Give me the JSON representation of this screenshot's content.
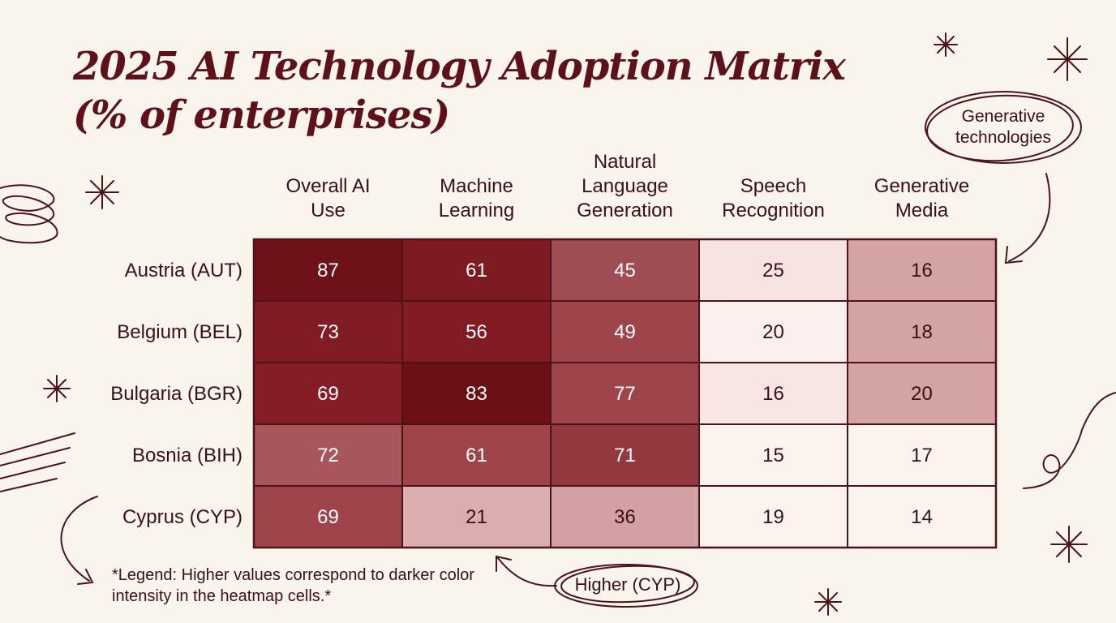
{
  "chart_data": {
    "type": "heatmap",
    "title_lines": [
      "2025 AI Technology Adoption Matrix",
      "(% of enterprises)"
    ],
    "columns": [
      [
        "Overall AI",
        "Use"
      ],
      [
        "Machine",
        "Learning"
      ],
      [
        "Natural",
        "Language",
        "Generation"
      ],
      [
        "Speech",
        "Recognition"
      ],
      [
        "Generative",
        "Media"
      ]
    ],
    "rows": [
      "Austria (AUT)",
      "Belgium (BEL)",
      "Bulgaria (BGR)",
      "Bosnia (BIH)",
      "Cyprus (CYP)"
    ],
    "values": [
      [
        87,
        61,
        45,
        25,
        16
      ],
      [
        73,
        56,
        49,
        20,
        18
      ],
      [
        69,
        83,
        77,
        16,
        20
      ],
      [
        72,
        61,
        71,
        15,
        17
      ],
      [
        69,
        21,
        36,
        19,
        14
      ]
    ],
    "cell_colors": [
      [
        "#6e1219",
        "#7e1a22",
        "#a04c53",
        "#f7e3e0",
        "#d4a3a4"
      ],
      [
        "#811c24",
        "#821b24",
        "#9e454c",
        "#fbf0ed",
        "#d4a3a4"
      ],
      [
        "#841d26",
        "#6b1116",
        "#9e454c",
        "#f8e6e2",
        "#d4a3a4"
      ],
      [
        "#a8565c",
        "#9e454c",
        "#943840",
        "#fcf2ee",
        "#fcf2ee"
      ],
      [
        "#9e454c",
        "#dcadae",
        "#d3a1a3",
        "#fcf2ee",
        "#fcf2ee"
      ]
    ],
    "text_colors": [
      [
        "#ffffff",
        "#ffffff",
        "#ffffff",
        "#3a1014",
        "#3a1014"
      ],
      [
        "#ffffff",
        "#ffffff",
        "#ffffff",
        "#3a1014",
        "#3a1014"
      ],
      [
        "#ffffff",
        "#ffffff",
        "#ffffff",
        "#3a1014",
        "#3a1014"
      ],
      [
        "#ffffff",
        "#ffffff",
        "#ffffff",
        "#3a1014",
        "#3a1014"
      ],
      [
        "#ffffff",
        "#3a1014",
        "#3a1014",
        "#3a1014",
        "#3a1014"
      ]
    ],
    "annotations": {
      "legend": "*Legend: Higher values correspond to darker color intensity in the heatmap cells.*",
      "generative_callout": [
        "Generative",
        "technologies"
      ],
      "cyp_callout": "Higher (CYP)"
    },
    "colors": {
      "background": "#faf5ec",
      "title": "#5e1118",
      "grid_line": "#4a1418",
      "ink": "#3a1014"
    }
  }
}
